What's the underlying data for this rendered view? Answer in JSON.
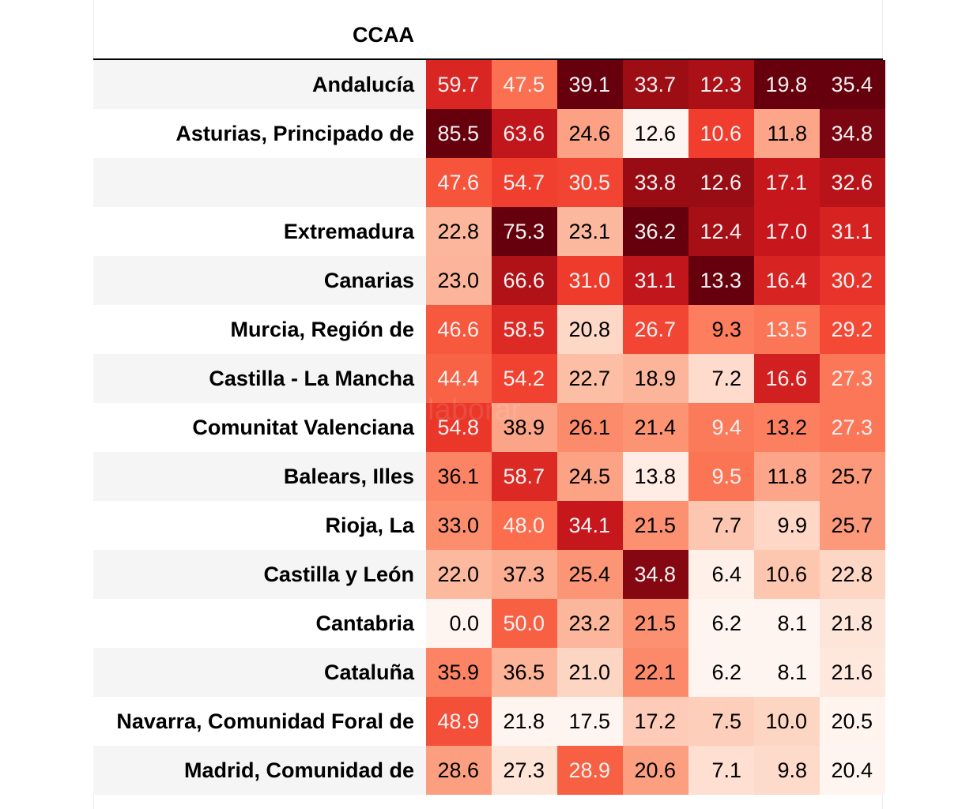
{
  "chart_data": {
    "type": "heatmap",
    "index_header": "CCAA",
    "colormap": "Reds",
    "rows": [
      {
        "label": "Andalucía",
        "values": [
          59.7,
          47.5,
          39.1,
          33.7,
          12.3,
          19.8,
          35.4
        ]
      },
      {
        "label": "Asturias, Principado de",
        "values": [
          85.5,
          63.6,
          24.6,
          12.6,
          10.6,
          11.8,
          34.8
        ]
      },
      {
        "label": "",
        "values": [
          47.6,
          54.7,
          30.5,
          33.8,
          12.6,
          17.1,
          32.6
        ]
      },
      {
        "label": "Extremadura",
        "values": [
          22.8,
          75.3,
          23.1,
          36.2,
          12.4,
          17.0,
          31.1
        ]
      },
      {
        "label": "Canarias",
        "values": [
          23.0,
          66.6,
          31.0,
          31.1,
          13.3,
          16.4,
          30.2
        ]
      },
      {
        "label": "Murcia, Región de",
        "values": [
          46.6,
          58.5,
          20.8,
          26.7,
          9.3,
          13.5,
          29.2
        ]
      },
      {
        "label": "Castilla - La Mancha",
        "values": [
          44.4,
          54.2,
          22.7,
          18.9,
          7.2,
          16.6,
          27.3
        ]
      },
      {
        "label": "Comunitat Valenciana",
        "values": [
          54.8,
          38.9,
          26.1,
          21.4,
          9.4,
          13.2,
          27.3
        ]
      },
      {
        "label": "Balears, Illes",
        "values": [
          36.1,
          58.7,
          24.5,
          13.8,
          9.5,
          11.8,
          25.7
        ]
      },
      {
        "label": "Rioja, La",
        "values": [
          33.0,
          48.0,
          34.1,
          21.5,
          7.7,
          9.9,
          25.7
        ]
      },
      {
        "label": "Castilla y León",
        "values": [
          22.0,
          37.3,
          25.4,
          34.8,
          6.4,
          10.6,
          22.8
        ]
      },
      {
        "label": "Cantabria",
        "values": [
          0.0,
          50.0,
          23.2,
          21.5,
          6.2,
          8.1,
          21.8
        ]
      },
      {
        "label": "Cataluña",
        "values": [
          35.9,
          36.5,
          21.0,
          22.1,
          6.2,
          8.1,
          21.6
        ]
      },
      {
        "label": "Navarra, Comunidad Foral de",
        "values": [
          48.9,
          21.8,
          17.5,
          17.2,
          7.5,
          10.0,
          20.5
        ]
      },
      {
        "label": "Madrid, Comunidad de",
        "values": [
          28.6,
          27.3,
          28.9,
          20.6,
          7.1,
          9.8,
          20.4
        ]
      }
    ]
  }
}
